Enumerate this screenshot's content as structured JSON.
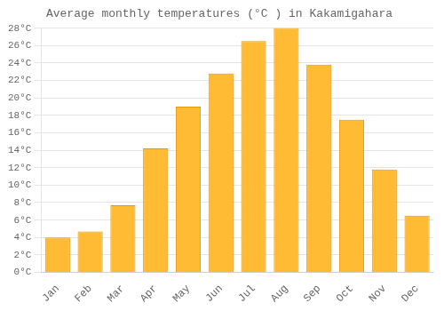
{
  "chart_data": {
    "type": "bar",
    "title": "Average monthly temperatures (°C ) in Kakamigahara",
    "categories": [
      "Jan",
      "Feb",
      "Mar",
      "Apr",
      "May",
      "Jun",
      "Jul",
      "Aug",
      "Sep",
      "Oct",
      "Nov",
      "Dec"
    ],
    "values": [
      4.0,
      4.7,
      7.7,
      14.2,
      19.0,
      22.8,
      26.5,
      28.0,
      23.8,
      17.5,
      11.8,
      6.5
    ],
    "color": "#FFBB33",
    "ylim": [
      0,
      28
    ],
    "yticks": [
      {
        "value": 0,
        "label": "0°C"
      },
      {
        "value": 2,
        "label": "2°C"
      },
      {
        "value": 4,
        "label": "4°C"
      },
      {
        "value": 6,
        "label": "6°C"
      },
      {
        "value": 8,
        "label": "8°C"
      },
      {
        "value": 10,
        "label": "10°C"
      },
      {
        "value": 12,
        "label": "12°C"
      },
      {
        "value": 14,
        "label": "14°C"
      },
      {
        "value": 16,
        "label": "16°C"
      },
      {
        "value": 18,
        "label": "18°C"
      },
      {
        "value": 20,
        "label": "20°C"
      },
      {
        "value": 22,
        "label": "22°C"
      },
      {
        "value": 24,
        "label": "24°C"
      },
      {
        "value": 26,
        "label": "26°C"
      },
      {
        "value": 28,
        "label": "28°C"
      }
    ],
    "grid": true
  }
}
